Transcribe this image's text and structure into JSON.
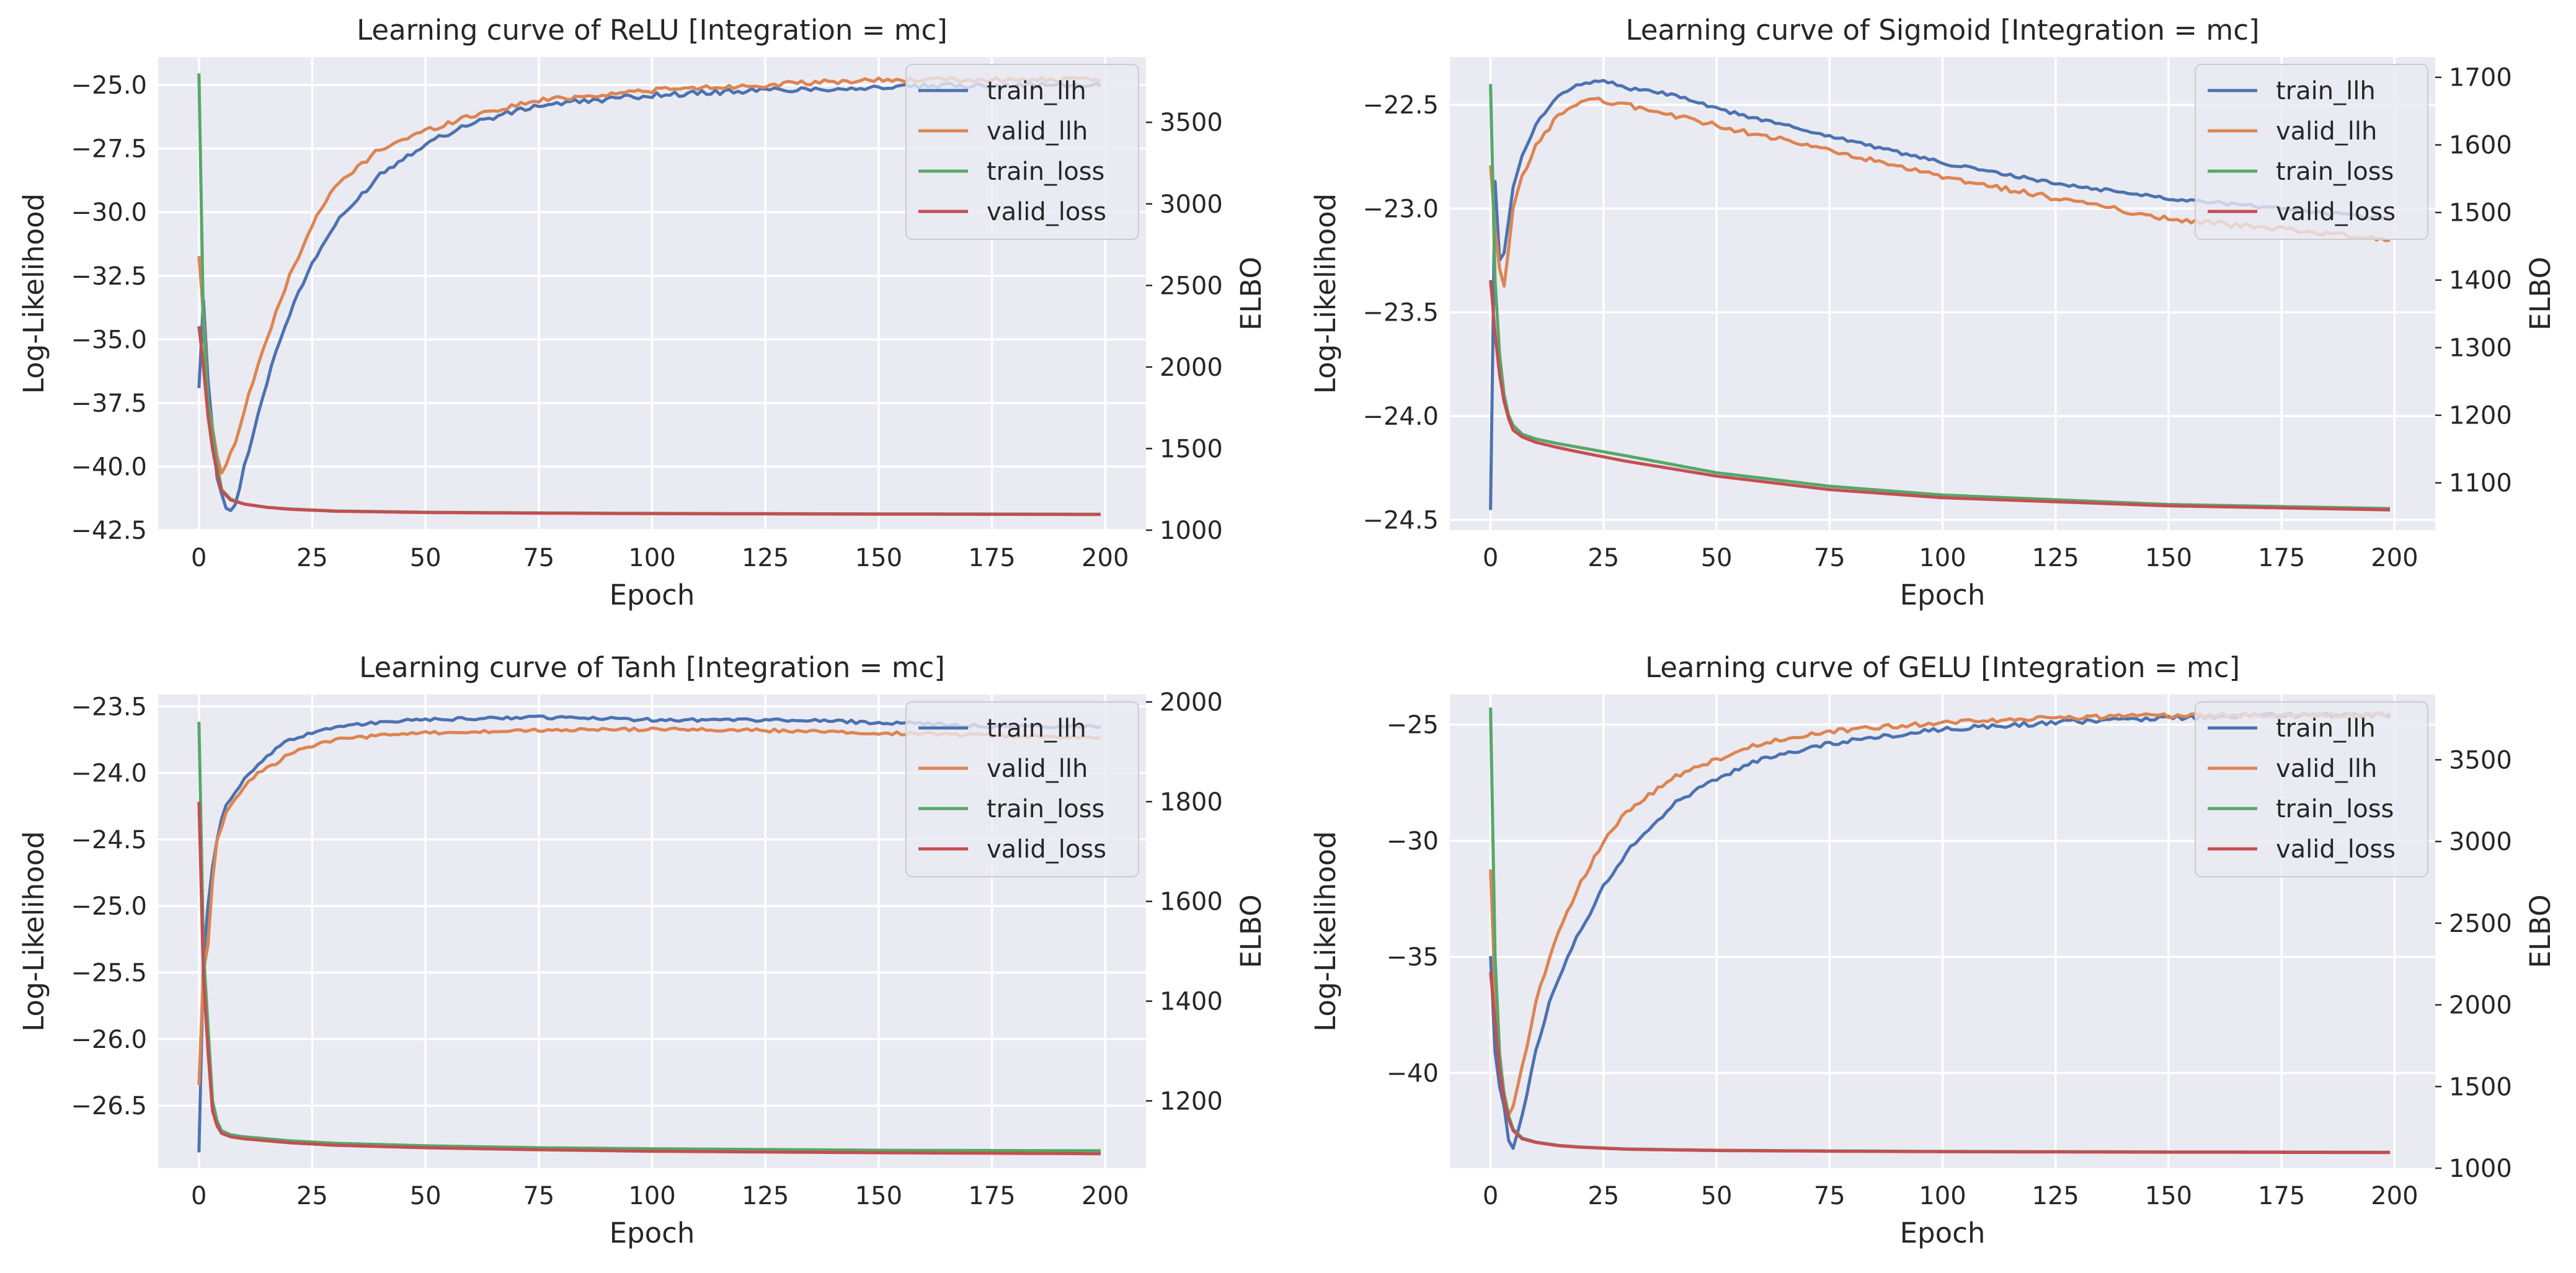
{
  "figure": {
    "background": "#ffffff",
    "plot_background": "#EAEAF2",
    "grid_color": "#ffffff",
    "text_color": "#262626"
  },
  "chart_data": [
    {
      "type": "line",
      "title": "Learning curve of ReLU [Integration = mc]",
      "xlabel": "Epoch",
      "ylabel": "Log-Likelihood",
      "y2label": "ELBO",
      "xlim": [
        -9,
        209
      ],
      "ylim": [
        -42.5,
        -23.9
      ],
      "y2lim": [
        1000,
        3900
      ],
      "xticks": [
        0,
        25,
        50,
        75,
        100,
        125,
        150,
        175,
        200
      ],
      "yticks": [
        -42.5,
        -40.0,
        -37.5,
        -35.0,
        -32.5,
        -30.0,
        -27.5,
        -25.0
      ],
      "ytick_labels": [
        "−42.5",
        "−40.0",
        "−37.5",
        "−35.0",
        "−32.5",
        "−30.0",
        "−27.5",
        "−25.0"
      ],
      "y2ticks": [
        1000,
        1500,
        2000,
        2500,
        3000,
        3500
      ],
      "grid": true,
      "legend": "upper right",
      "series": [
        {
          "name": "train_llh",
          "axis": "left",
          "color": "#4C72B0",
          "jitter": 0.1,
          "x": [
            0,
            1,
            2,
            3,
            4,
            5,
            6,
            8,
            10,
            13,
            16,
            20,
            25,
            30,
            40,
            50,
            60,
            75,
            100,
            125,
            150,
            175,
            199
          ],
          "y": [
            -37.0,
            -33.5,
            -36.5,
            -38.5,
            -40.5,
            -41.0,
            -41.7,
            -41.6,
            -40.0,
            -38.0,
            -36.0,
            -34.0,
            -32.0,
            -30.5,
            -28.5,
            -27.3,
            -26.5,
            -25.8,
            -25.4,
            -25.2,
            -25.1,
            -25.0,
            -25.0
          ]
        },
        {
          "name": "valid_llh",
          "axis": "left",
          "color": "#DD8452",
          "jitter": 0.1,
          "x": [
            0,
            1,
            2,
            3,
            4,
            5,
            6,
            8,
            10,
            13,
            16,
            20,
            25,
            30,
            40,
            50,
            60,
            75,
            100,
            125,
            150,
            175,
            199
          ],
          "y": [
            -31.7,
            -34.0,
            -37.5,
            -38.5,
            -39.5,
            -40.2,
            -40.0,
            -39.0,
            -37.8,
            -36.0,
            -34.5,
            -32.5,
            -30.5,
            -29.0,
            -27.5,
            -26.8,
            -26.2,
            -25.6,
            -25.2,
            -25.0,
            -24.8,
            -24.8,
            -24.8
          ]
        },
        {
          "name": "train_loss",
          "axis": "right",
          "color": "#55A868",
          "jitter": 0,
          "x": [
            0,
            1,
            2,
            3,
            4,
            5,
            7,
            10,
            15,
            20,
            30,
            50,
            75,
            100,
            150,
            199
          ],
          "y": [
            3800,
            2250,
            1800,
            1600,
            1400,
            1250,
            1190,
            1160,
            1140,
            1130,
            1118,
            1110,
            1106,
            1103,
            1100,
            1098
          ]
        },
        {
          "name": "valid_loss",
          "axis": "right",
          "color": "#C44E52",
          "jitter": 0,
          "x": [
            0,
            1,
            2,
            3,
            4,
            5,
            7,
            10,
            15,
            20,
            30,
            50,
            75,
            100,
            150,
            199
          ],
          "y": [
            2250,
            2000,
            1700,
            1500,
            1350,
            1240,
            1185,
            1160,
            1140,
            1128,
            1116,
            1108,
            1104,
            1101,
            1098,
            1096
          ]
        }
      ]
    },
    {
      "type": "line",
      "title": "Learning curve of Sigmoid [Integration = mc]",
      "xlabel": "Epoch",
      "ylabel": "Log-Likelihood",
      "y2label": "ELBO",
      "xlim": [
        -9,
        209
      ],
      "ylim": [
        -24.55,
        -22.27
      ],
      "y2lim": [
        1030,
        1730
      ],
      "xticks": [
        0,
        25,
        50,
        75,
        100,
        125,
        150,
        175,
        200
      ],
      "yticks": [
        -24.5,
        -24.0,
        -23.5,
        -23.0,
        -22.5
      ],
      "ytick_labels": [
        "−24.5",
        "−24.0",
        "−23.5",
        "−23.0",
        "−22.5"
      ],
      "y2ticks": [
        1100,
        1200,
        1300,
        1400,
        1500,
        1600,
        1700
      ],
      "grid": true,
      "legend": "upper right",
      "series": [
        {
          "name": "train_llh",
          "axis": "left",
          "color": "#4C72B0",
          "jitter": 0.008,
          "x": [
            0,
            1,
            2,
            3,
            4,
            5,
            7,
            10,
            15,
            20,
            25,
            30,
            40,
            50,
            75,
            100,
            125,
            150,
            175,
            199
          ],
          "y": [
            -24.45,
            -22.87,
            -23.25,
            -23.22,
            -23.05,
            -22.9,
            -22.75,
            -22.6,
            -22.45,
            -22.4,
            -22.38,
            -22.42,
            -22.45,
            -22.52,
            -22.65,
            -22.78,
            -22.88,
            -22.95,
            -23.0,
            -23.05
          ]
        },
        {
          "name": "valid_llh",
          "axis": "left",
          "color": "#DD8452",
          "jitter": 0.012,
          "x": [
            0,
            1,
            2,
            3,
            4,
            5,
            7,
            10,
            15,
            20,
            25,
            30,
            40,
            50,
            75,
            100,
            125,
            150,
            175,
            199
          ],
          "y": [
            -22.8,
            -23.1,
            -23.3,
            -23.38,
            -23.2,
            -23.0,
            -22.85,
            -22.7,
            -22.55,
            -22.48,
            -22.48,
            -22.5,
            -22.55,
            -22.6,
            -22.72,
            -22.85,
            -22.95,
            -23.05,
            -23.1,
            -23.15
          ]
        },
        {
          "name": "train_loss",
          "axis": "right",
          "color": "#55A868",
          "jitter": 0,
          "x": [
            0,
            1,
            2,
            3,
            4,
            5,
            7,
            10,
            15,
            20,
            30,
            50,
            75,
            100,
            150,
            199
          ],
          "y": [
            1690,
            1400,
            1290,
            1230,
            1200,
            1185,
            1172,
            1165,
            1158,
            1152,
            1140,
            1115,
            1095,
            1082,
            1068,
            1062
          ]
        },
        {
          "name": "valid_loss",
          "axis": "right",
          "color": "#C44E52",
          "jitter": 0,
          "x": [
            0,
            1,
            2,
            3,
            4,
            5,
            7,
            10,
            15,
            20,
            30,
            50,
            75,
            100,
            150,
            199
          ],
          "y": [
            1400,
            1320,
            1260,
            1220,
            1195,
            1178,
            1168,
            1160,
            1152,
            1145,
            1132,
            1110,
            1090,
            1078,
            1066,
            1060
          ]
        }
      ]
    },
    {
      "type": "line",
      "title": "Learning curve of Tanh [Integration = mc]",
      "xlabel": "Epoch",
      "ylabel": "Log-Likelihood",
      "y2label": "ELBO",
      "xlim": [
        -9,
        209
      ],
      "ylim": [
        -26.97,
        -23.41
      ],
      "y2lim": [
        1065,
        2015
      ],
      "xticks": [
        0,
        25,
        50,
        75,
        100,
        125,
        150,
        175,
        200
      ],
      "yticks": [
        -26.5,
        -26.0,
        -25.5,
        -25.0,
        -24.5,
        -24.0,
        -23.5
      ],
      "ytick_labels": [
        "−26.5",
        "−26.0",
        "−25.5",
        "−25.0",
        "−24.5",
        "−24.0",
        "−23.5"
      ],
      "y2ticks": [
        1200,
        1400,
        1600,
        1800,
        2000
      ],
      "grid": true,
      "legend": "upper right",
      "series": [
        {
          "name": "train_llh",
          "axis": "left",
          "color": "#4C72B0",
          "jitter": 0.012,
          "x": [
            0,
            1,
            2,
            3,
            4,
            5,
            6,
            8,
            10,
            13,
            16,
            20,
            25,
            30,
            40,
            50,
            75,
            100,
            125,
            150,
            175,
            199
          ],
          "y": [
            -26.85,
            -25.4,
            -25.0,
            -24.7,
            -24.5,
            -24.35,
            -24.25,
            -24.15,
            -24.05,
            -23.95,
            -23.85,
            -23.75,
            -23.7,
            -23.65,
            -23.62,
            -23.6,
            -23.58,
            -23.6,
            -23.6,
            -23.62,
            -23.65,
            -23.65
          ]
        },
        {
          "name": "valid_llh",
          "axis": "left",
          "color": "#DD8452",
          "jitter": 0.012,
          "x": [
            0,
            1,
            2,
            3,
            4,
            5,
            6,
            8,
            10,
            13,
            16,
            20,
            25,
            30,
            40,
            50,
            75,
            100,
            125,
            150,
            175,
            199
          ],
          "y": [
            -26.35,
            -25.5,
            -25.3,
            -24.8,
            -24.5,
            -24.4,
            -24.3,
            -24.2,
            -24.1,
            -24.0,
            -23.95,
            -23.85,
            -23.8,
            -23.75,
            -23.72,
            -23.7,
            -23.68,
            -23.67,
            -23.68,
            -23.7,
            -23.72,
            -23.73
          ]
        },
        {
          "name": "train_loss",
          "axis": "right",
          "color": "#55A868",
          "jitter": 0,
          "x": [
            0,
            1,
            2,
            3,
            4,
            5,
            7,
            10,
            15,
            20,
            30,
            50,
            75,
            100,
            150,
            199
          ],
          "y": [
            1960,
            1500,
            1350,
            1200,
            1160,
            1140,
            1132,
            1128,
            1124,
            1120,
            1115,
            1110,
            1106,
            1104,
            1101,
            1100
          ]
        },
        {
          "name": "valid_loss",
          "axis": "right",
          "color": "#C44E52",
          "jitter": 0,
          "x": [
            0,
            1,
            2,
            3,
            4,
            5,
            7,
            10,
            15,
            20,
            30,
            50,
            75,
            100,
            150,
            199
          ],
          "y": [
            1800,
            1450,
            1300,
            1180,
            1150,
            1135,
            1128,
            1124,
            1120,
            1116,
            1111,
            1106,
            1102,
            1099,
            1096,
            1094
          ]
        }
      ]
    },
    {
      "type": "line",
      "title": "Learning curve of GELU [Integration = mc]",
      "xlabel": "Epoch",
      "ylabel": "Log-Likelihood",
      "y2label": "ELBO",
      "xlim": [
        -9,
        209
      ],
      "ylim": [
        -44.1,
        -23.7
      ],
      "y2lim": [
        1000,
        3900
      ],
      "xticks": [
        0,
        25,
        50,
        75,
        100,
        125,
        150,
        175,
        200
      ],
      "yticks": [
        -40,
        -35,
        -30,
        -25
      ],
      "ytick_labels": [
        "−40",
        "−35",
        "−30",
        "−25"
      ],
      "y2ticks": [
        1000,
        1500,
        2000,
        2500,
        3000,
        3500
      ],
      "grid": true,
      "legend": "upper right",
      "series": [
        {
          "name": "train_llh",
          "axis": "left",
          "color": "#4C72B0",
          "jitter": 0.1,
          "x": [
            0,
            1,
            2,
            3,
            4,
            5,
            6,
            8,
            10,
            13,
            16,
            20,
            25,
            30,
            40,
            50,
            60,
            75,
            100,
            125,
            150,
            175,
            199
          ],
          "y": [
            -35.0,
            -39.0,
            -40.5,
            -41.5,
            -43.0,
            -43.3,
            -42.5,
            -41.0,
            -39.0,
            -37.0,
            -35.5,
            -33.8,
            -32.0,
            -30.5,
            -28.5,
            -27.3,
            -26.5,
            -25.8,
            -25.2,
            -24.9,
            -24.7,
            -24.6,
            -24.6
          ]
        },
        {
          "name": "valid_llh",
          "axis": "left",
          "color": "#DD8452",
          "jitter": 0.1,
          "x": [
            0,
            1,
            2,
            3,
            4,
            5,
            6,
            8,
            10,
            13,
            16,
            20,
            25,
            30,
            40,
            50,
            60,
            75,
            100,
            125,
            150,
            175,
            199
          ],
          "y": [
            -31.2,
            -36.5,
            -39.5,
            -40.8,
            -41.8,
            -41.5,
            -40.5,
            -39.0,
            -37.0,
            -35.0,
            -33.5,
            -31.8,
            -30.0,
            -28.8,
            -27.3,
            -26.5,
            -25.8,
            -25.3,
            -24.9,
            -24.7,
            -24.6,
            -24.6,
            -24.6
          ]
        },
        {
          "name": "train_loss",
          "axis": "right",
          "color": "#55A868",
          "jitter": 0,
          "x": [
            0,
            1,
            2,
            3,
            4,
            5,
            7,
            10,
            15,
            20,
            30,
            50,
            75,
            100,
            150,
            199
          ],
          "y": [
            3820,
            2300,
            1700,
            1450,
            1320,
            1240,
            1185,
            1160,
            1140,
            1130,
            1118,
            1110,
            1106,
            1103,
            1100,
            1098
          ]
        },
        {
          "name": "valid_loss",
          "axis": "right",
          "color": "#C44E52",
          "jitter": 0,
          "x": [
            0,
            1,
            2,
            3,
            4,
            5,
            7,
            10,
            15,
            20,
            30,
            50,
            75,
            100,
            150,
            199
          ],
          "y": [
            2200,
            1900,
            1600,
            1420,
            1300,
            1230,
            1180,
            1158,
            1138,
            1128,
            1116,
            1108,
            1104,
            1101,
            1098,
            1096
          ]
        }
      ]
    }
  ]
}
